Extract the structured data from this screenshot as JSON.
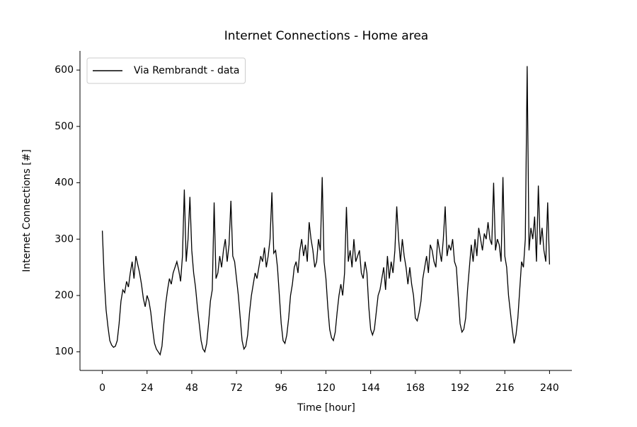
{
  "chart_data": {
    "type": "line",
    "title": "Internet Connections - Home area",
    "xlabel": "Time [hour]",
    "ylabel": "Internet Connections [#]",
    "legend": "upper left",
    "xlim": [
      -12,
      252
    ],
    "ylim": [
      67,
      634
    ],
    "xticks": [
      0,
      24,
      48,
      72,
      96,
      120,
      144,
      168,
      192,
      216,
      240
    ],
    "yticks": [
      100,
      200,
      300,
      400,
      500,
      600
    ],
    "x": [
      0,
      1,
      2,
      3,
      4,
      5,
      6,
      7,
      8,
      9,
      10,
      11,
      12,
      13,
      14,
      15,
      16,
      17,
      18,
      19,
      20,
      21,
      22,
      23,
      24,
      25,
      26,
      27,
      28,
      29,
      30,
      31,
      32,
      33,
      34,
      35,
      36,
      37,
      38,
      39,
      40,
      41,
      42,
      43,
      44,
      45,
      46,
      47,
      48,
      49,
      50,
      51,
      52,
      53,
      54,
      55,
      56,
      57,
      58,
      59,
      60,
      61,
      62,
      63,
      64,
      65,
      66,
      67,
      68,
      69,
      70,
      71,
      72,
      73,
      74,
      75,
      76,
      77,
      78,
      79,
      80,
      81,
      82,
      83,
      84,
      85,
      86,
      87,
      88,
      89,
      90,
      91,
      92,
      93,
      94,
      95,
      96,
      97,
      98,
      99,
      100,
      101,
      102,
      103,
      104,
      105,
      106,
      107,
      108,
      109,
      110,
      111,
      112,
      113,
      114,
      115,
      116,
      117,
      118,
      119,
      120,
      121,
      122,
      123,
      124,
      125,
      126,
      127,
      128,
      129,
      130,
      131,
      132,
      133,
      134,
      135,
      136,
      137,
      138,
      139,
      140,
      141,
      142,
      143,
      144,
      145,
      146,
      147,
      148,
      149,
      150,
      151,
      152,
      153,
      154,
      155,
      156,
      157,
      158,
      159,
      160,
      161,
      162,
      163,
      164,
      165,
      166,
      167,
      168,
      169,
      170,
      171,
      172,
      173,
      174,
      175,
      176,
      177,
      178,
      179,
      180,
      181,
      182,
      183,
      184,
      185,
      186,
      187,
      188,
      189,
      190,
      191,
      192,
      193,
      194,
      195,
      196,
      197,
      198,
      199,
      200,
      201,
      202,
      203,
      204,
      205,
      206,
      207,
      208,
      209,
      210,
      211,
      212,
      213,
      214,
      215,
      216,
      217,
      218,
      219,
      220,
      221,
      222,
      223,
      224,
      225,
      226,
      227,
      228,
      229,
      230,
      231,
      232,
      233,
      234,
      235,
      236,
      237,
      238,
      239,
      240
    ],
    "series": [
      {
        "name": "Via Rembrandt - data",
        "color": "#000000",
        "values": [
          315,
          230,
          175,
          145,
          120,
          112,
          108,
          110,
          120,
          150,
          190,
          210,
          205,
          225,
          215,
          240,
          260,
          230,
          270,
          255,
          240,
          220,
          195,
          180,
          200,
          190,
          170,
          140,
          115,
          105,
          100,
          95,
          110,
          150,
          185,
          210,
          230,
          220,
          240,
          250,
          260,
          245,
          225,
          270,
          388,
          260,
          300,
          375,
          280,
          240,
          215,
          180,
          150,
          120,
          105,
          100,
          115,
          150,
          190,
          210,
          365,
          230,
          240,
          270,
          250,
          280,
          300,
          260,
          290,
          368,
          270,
          260,
          230,
          200,
          160,
          120,
          105,
          110,
          130,
          170,
          200,
          220,
          240,
          230,
          250,
          270,
          260,
          285,
          250,
          270,
          300,
          383,
          275,
          280,
          250,
          200,
          150,
          120,
          115,
          130,
          160,
          200,
          220,
          250,
          260,
          240,
          280,
          300,
          270,
          290,
          260,
          330,
          300,
          280,
          250,
          260,
          300,
          280,
          410,
          260,
          230,
          180,
          140,
          125,
          120,
          135,
          170,
          200,
          220,
          200,
          240,
          357,
          260,
          280,
          250,
          300,
          260,
          270,
          280,
          240,
          230,
          260,
          240,
          180,
          140,
          130,
          140,
          170,
          200,
          210,
          230,
          250,
          210,
          270,
          230,
          260,
          240,
          280,
          358,
          300,
          260,
          300,
          270,
          250,
          220,
          250,
          220,
          200,
          160,
          155,
          170,
          190,
          230,
          250,
          270,
          240,
          290,
          280,
          260,
          250,
          300,
          280,
          260,
          300,
          358,
          270,
          290,
          280,
          300,
          260,
          250,
          200,
          150,
          135,
          140,
          160,
          210,
          250,
          290,
          260,
          300,
          270,
          320,
          300,
          280,
          310,
          300,
          330,
          300,
          290,
          400,
          280,
          300,
          290,
          260,
          410,
          270,
          250,
          200,
          170,
          140,
          115,
          130,
          160,
          210,
          260,
          250,
          300,
          607,
          280,
          320,
          300,
          340,
          260,
          395,
          290,
          320,
          280,
          260,
          365,
          255
        ]
      }
    ]
  }
}
